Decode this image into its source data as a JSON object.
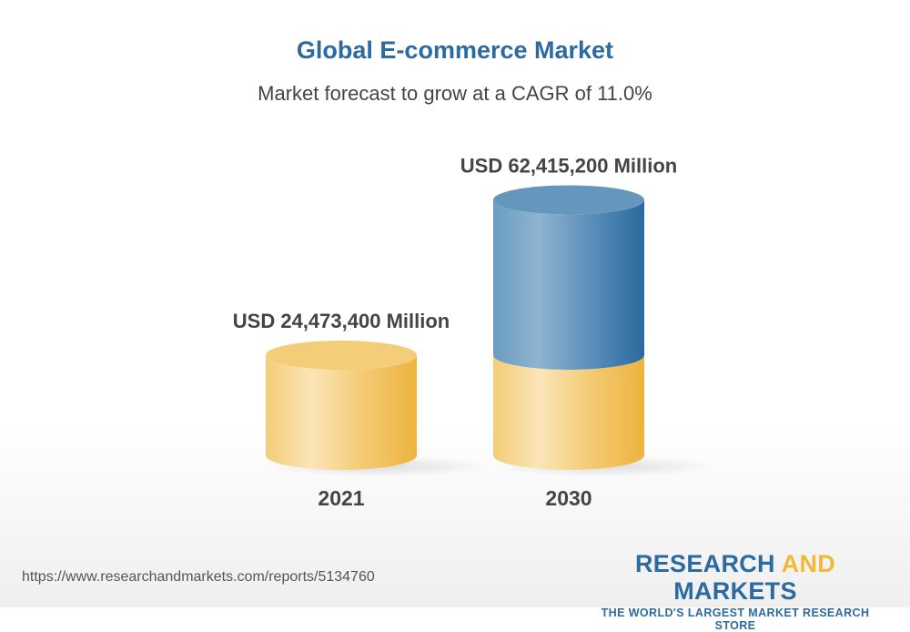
{
  "chart_data": {
    "type": "bar",
    "title": "Global E-commerce Market",
    "subtitle": "Market forecast to grow at a CAGR of 11.0%",
    "categories": [
      "2021",
      "2030"
    ],
    "values": [
      24473400,
      62415200
    ],
    "data_labels": [
      "USD 24,473,400 Million",
      "USD 62,415,200 Million"
    ],
    "unit": "USD Million",
    "style": "3d-cylinder",
    "colors": {
      "base": "#f2c35a",
      "growth": "#2c6aa0"
    }
  },
  "footer": {
    "url": "https://www.researchandmarkets.com/reports/5134760",
    "logo_part1": "RESEARCH ",
    "logo_part2": "AND",
    "logo_part3": " MARKETS",
    "tagline": "THE WORLD'S LARGEST MARKET RESEARCH STORE"
  }
}
